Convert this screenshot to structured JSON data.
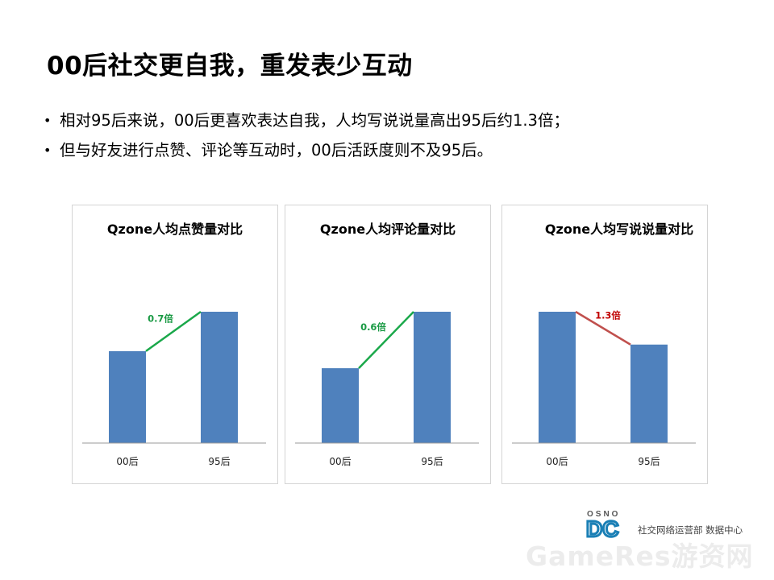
{
  "title": "00后社交更自我，重发表少互动",
  "bullets": [
    "相对95后来说，00后更喜欢表达自我，人均写说说量高出95后约1.3倍；",
    "但与好友进行点赞、评论等互动时，00后活跃度则不及95后。"
  ],
  "bullet_symbol": "•",
  "colors": {
    "bar": "#4f81bd",
    "line_up": "#1aa84a",
    "line_down": "#c0504d",
    "label_up": "#1a9a44",
    "label_down": "#c00000"
  },
  "chart_data": [
    {
      "type": "bar",
      "title": "Qzone人均点赞量对比",
      "categories": [
        "00后",
        "95后"
      ],
      "values": [
        0.7,
        1.0
      ],
      "ylim": [
        0,
        1
      ],
      "grid": false,
      "annotation": {
        "text": "0.7倍",
        "trend": "up"
      }
    },
    {
      "type": "bar",
      "title": "Qzone人均评论量对比",
      "categories": [
        "00后",
        "95后"
      ],
      "values": [
        0.57,
        1.0
      ],
      "ylim": [
        0,
        1
      ],
      "grid": false,
      "annotation": {
        "text": "0.6倍",
        "trend": "up"
      }
    },
    {
      "type": "bar",
      "title": "Qzone人均写说说量对比",
      "categories": [
        "00后",
        "95后"
      ],
      "values": [
        1.0,
        0.75
      ],
      "ylim": [
        0,
        1
      ],
      "grid": false,
      "annotation": {
        "text": "1.3倍",
        "trend": "down"
      }
    }
  ],
  "footer": {
    "logo_top": "OSNO",
    "logo_main": "DC",
    "org": "社交网络运营部 数据中心",
    "watermark": "GameRes游资网"
  }
}
